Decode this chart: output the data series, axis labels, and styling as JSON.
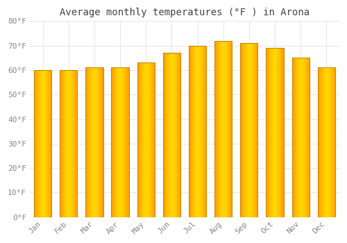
{
  "title": "Average monthly temperatures (°F ) in Arona",
  "months": [
    "Jan",
    "Feb",
    "Mar",
    "Apr",
    "May",
    "Jun",
    "Jul",
    "Aug",
    "Sep",
    "Oct",
    "Nov",
    "Dec"
  ],
  "values": [
    60,
    60,
    61,
    61,
    63,
    67,
    70,
    72,
    71,
    69,
    65,
    61
  ],
  "ylim": [
    0,
    80
  ],
  "yticks": [
    0,
    10,
    20,
    30,
    40,
    50,
    60,
    70,
    80
  ],
  "ytick_labels": [
    "0°F",
    "10°F",
    "20°F",
    "30°F",
    "40°F",
    "50°F",
    "60°F",
    "70°F",
    "80°F"
  ],
  "background_color": "#ffffff",
  "grid_color": "#e8e8e8",
  "bar_face_color": "#FFB300",
  "bar_edge_color": "#CC8800",
  "bar_gradient_center": "#FFD84D",
  "title_fontsize": 10,
  "tick_fontsize": 8,
  "tick_color": "#888888",
  "title_color": "#444444",
  "font_family": "monospace"
}
